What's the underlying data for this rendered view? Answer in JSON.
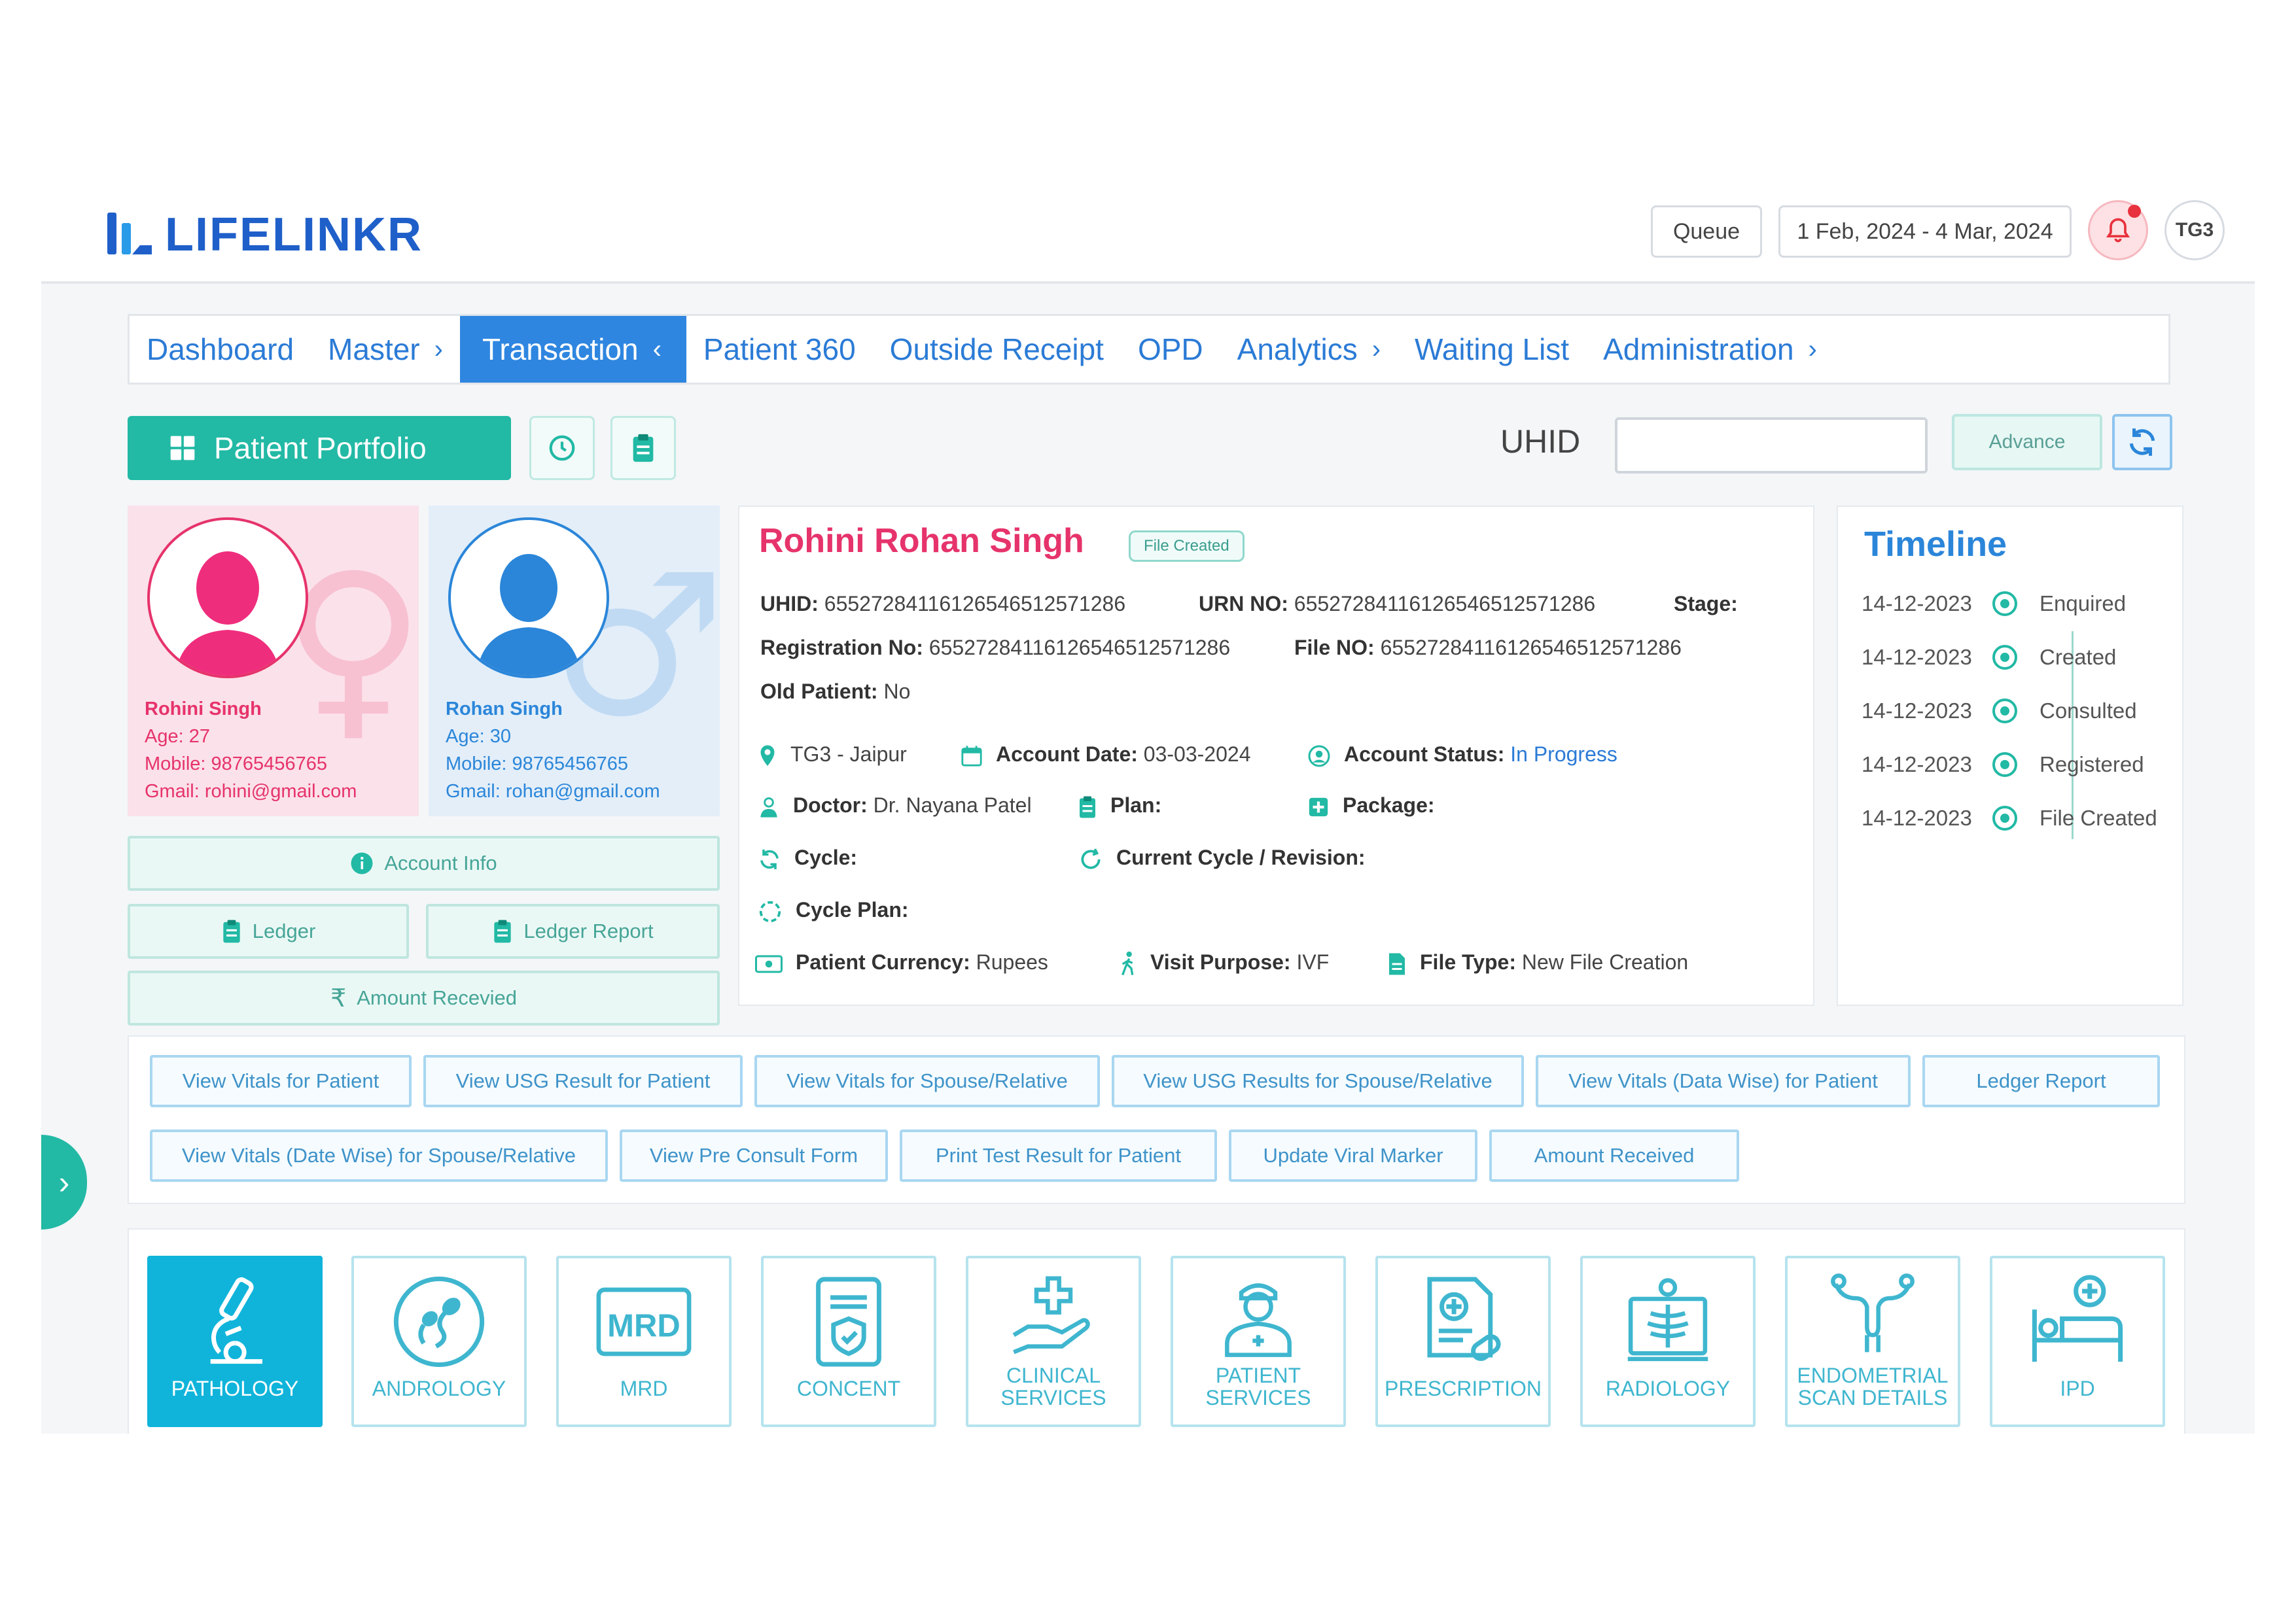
{
  "brand": {
    "name": "LIFELINKR"
  },
  "header": {
    "queue_label": "Queue",
    "date_range": "1 Feb, 2024 - 4 Mar, 2024",
    "user_initials": "TG3"
  },
  "nav": {
    "items": [
      {
        "label": "Dashboard"
      },
      {
        "label": "Master"
      },
      {
        "label": "Transaction"
      },
      {
        "label": "Patient 360"
      },
      {
        "label": "Outside Receipt"
      },
      {
        "label": "OPD"
      },
      {
        "label": "Analytics"
      },
      {
        "label": "Waiting List"
      },
      {
        "label": "Administration"
      }
    ],
    "active": "Transaction"
  },
  "toolbar": {
    "portfolio_label": "Patient Portfolio",
    "uhid_label": "UHID",
    "uhid_value": "",
    "advance_label": "Advance"
  },
  "female": {
    "name": "Rohini Singh",
    "age": "Age: 27",
    "mobile": "Mobile: 98765456765",
    "gmail": "Gmail: rohini@gmail.com"
  },
  "male": {
    "name": "Rohan Singh",
    "age": "Age: 30",
    "mobile": "Mobile: 98765456765",
    "gmail": "Gmail: rohan@gmail.com"
  },
  "left_actions": {
    "account_info": "Account Info",
    "ledger": "Ledger",
    "ledger_report": "Ledger Report",
    "amount_received": "Amount Recevied"
  },
  "patient": {
    "full_name": "Rohini Rohan Singh",
    "badge": "File Created",
    "uhid_label": "UHID:",
    "uhid": "65527284116126546512571286",
    "urn_label": "URN NO:",
    "urn": "65527284116126546512571286",
    "stage_label": "Stage:",
    "stage": "",
    "reg_label": "Registration No:",
    "reg": "65527284116126546512571286",
    "file_label": "File NO:",
    "file": "65527284116126546512571286",
    "old_label": "Old Patient:",
    "old": "No",
    "location": "TG3 - Jaipur",
    "account_date_label": "Account Date:",
    "account_date": "03-03-2024",
    "account_status_label": "Account Status:",
    "account_status": "In Progress",
    "doctor_label": "Doctor:",
    "doctor": "Dr. Nayana Patel",
    "plan_label": "Plan:",
    "plan": "",
    "package_label": "Package:",
    "package": "",
    "cycle_label": "Cycle:",
    "cycle": "",
    "current_cycle_label": "Current Cycle / Revision:",
    "current_cycle": "",
    "cycle_plan_label": "Cycle Plan:",
    "cycle_plan": "",
    "currency_label": "Patient Currency:",
    "currency": "Rupees",
    "visit_label": "Visit Purpose:",
    "visit": "IVF",
    "file_type_label": "File Type:",
    "file_type": "New File Creation"
  },
  "timeline": {
    "title": "Timeline",
    "items": [
      {
        "date": "14-12-2023",
        "status": "Enquired"
      },
      {
        "date": "14-12-2023",
        "status": "Created"
      },
      {
        "date": "14-12-2023",
        "status": "Consulted"
      },
      {
        "date": "14-12-2023",
        "status": "Registered"
      },
      {
        "date": "14-12-2023",
        "status": "File Created"
      }
    ]
  },
  "actions": [
    "View Vitals for Patient",
    "View USG Result for Patient",
    "View Vitals for Spouse/Relative",
    "View USG Results for Spouse/Relative",
    "View Vitals (Data Wise) for Patient",
    "Ledger Report",
    "View Vitals (Date Wise) for Spouse/Relative",
    "View Pre Consult Form",
    "Print Test Result for Patient",
    "Update Viral Marker",
    "Amount Received"
  ],
  "modules": [
    {
      "label": "PATHOLOGY",
      "icon": "microscope-icon"
    },
    {
      "label": "ANDROLOGY",
      "icon": "sperm-icon"
    },
    {
      "label": "MRD",
      "icon": "mrd-icon",
      "icon_text": "MRD"
    },
    {
      "label": "CONCENT",
      "icon": "consent-document-icon"
    },
    {
      "label": "CLINICAL SERVICES",
      "icon": "hand-cross-icon"
    },
    {
      "label": "PATIENT SERVICES",
      "icon": "nurse-icon"
    },
    {
      "label": "PRESCRIPTION",
      "icon": "prescription-icon"
    },
    {
      "label": "RADIOLOGY",
      "icon": "xray-icon"
    },
    {
      "label": "ENDOMETRIAL SCAN DETAILS",
      "icon": "uterus-icon"
    },
    {
      "label": "IPD",
      "icon": "hospital-bed-icon"
    }
  ],
  "colors": {
    "primary_blue": "#2e86e0",
    "teal": "#22b9a5",
    "pink": "#e6336b",
    "module_active": "#10b4da"
  }
}
